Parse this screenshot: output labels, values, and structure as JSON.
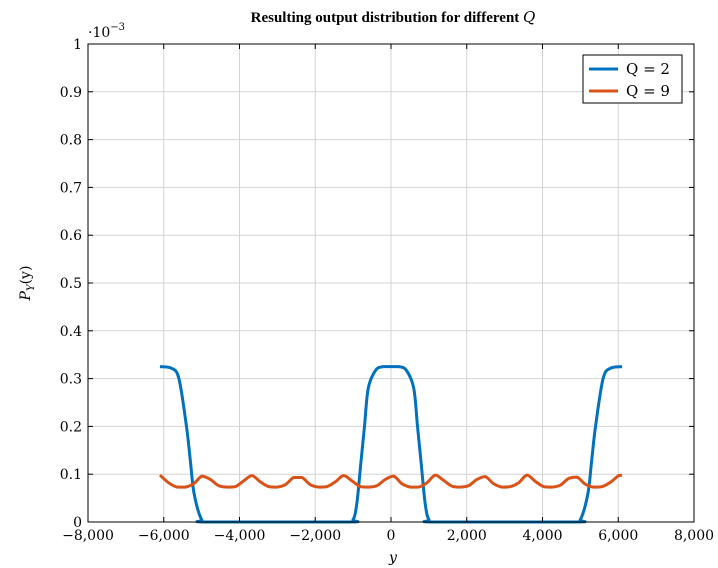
{
  "chart_data": {
    "type": "line",
    "title": "Resulting output distribution for different",
    "title_var": "Q",
    "xlabel": "y",
    "ylabel": "P_Y(y)",
    "ylabel_main": "P",
    "ylabel_sub": "Y",
    "ylabel_tail": "(y)",
    "y_exponent_label": "·10",
    "y_exponent_power": "−3",
    "xlim": [
      -8000,
      8000
    ],
    "ylim": [
      0,
      1
    ],
    "x_ticks": [
      -8000,
      -6000,
      -4000,
      -2000,
      0,
      2000,
      4000,
      6000,
      8000
    ],
    "x_tick_labels": [
      "−8,000",
      "−6,000",
      "−4,000",
      "−2,000",
      "0",
      "2,000",
      "4,000",
      "6,000",
      "8,000"
    ],
    "y_ticks": [
      0,
      0.1,
      0.2,
      0.3,
      0.4,
      0.5,
      0.6,
      0.7,
      0.8,
      0.9,
      1
    ],
    "y_tick_labels": [
      "0",
      "0.1",
      "0.2",
      "0.3",
      "0.4",
      "0.5",
      "0.6",
      "0.7",
      "0.8",
      "0.9",
      "1"
    ],
    "grid": true,
    "legend_position": "top-right",
    "series": [
      {
        "name": "Q = 2",
        "color": "#0072bd",
        "x": [
          -6100,
          -5800,
          -5600,
          -5400,
          -5300,
          -5200,
          -5000,
          -4800,
          -1200,
          -1000,
          -900,
          -800,
          -700,
          -600,
          -400,
          -200,
          0,
          200,
          400,
          600,
          700,
          800,
          900,
          1000,
          1200,
          4800,
          5000,
          5200,
          5300,
          5400,
          5600,
          5800,
          6100
        ],
        "values": [
          0.325,
          0.322,
          0.3,
          0.2,
          0.13,
          0.06,
          0.005,
          0.0,
          0.0,
          0.005,
          0.04,
          0.12,
          0.2,
          0.28,
          0.318,
          0.325,
          0.325,
          0.325,
          0.318,
          0.28,
          0.2,
          0.12,
          0.04,
          0.005,
          0.0,
          0.0,
          0.005,
          0.06,
          0.13,
          0.2,
          0.3,
          0.322,
          0.325
        ]
      },
      {
        "name": "Q = 9",
        "color": "#d95319",
        "x": [
          -6100,
          -5870,
          -5650,
          -5430,
          -5210,
          -4990,
          -4770,
          -4550,
          -4330,
          -4110,
          -3890,
          -3670,
          -3450,
          -3230,
          -3010,
          -2790,
          -2570,
          -2350,
          -2130,
          -1910,
          -1690,
          -1470,
          -1250,
          -1030,
          -810,
          -590,
          -370,
          -150,
          70,
          290,
          510,
          730,
          950,
          1170,
          1390,
          1610,
          1830,
          2050,
          2270,
          2490,
          2710,
          2930,
          3150,
          3370,
          3590,
          3810,
          4030,
          4250,
          4470,
          4690,
          4910,
          5130,
          5350,
          5570,
          5790,
          6010,
          6100
        ],
        "values": [
          0.098,
          0.082,
          0.073,
          0.073,
          0.08,
          0.096,
          0.089,
          0.076,
          0.073,
          0.074,
          0.086,
          0.097,
          0.084,
          0.074,
          0.073,
          0.078,
          0.093,
          0.093,
          0.078,
          0.073,
          0.074,
          0.084,
          0.097,
          0.086,
          0.074,
          0.073,
          0.076,
          0.089,
          0.096,
          0.08,
          0.073,
          0.073,
          0.082,
          0.098,
          0.087,
          0.075,
          0.073,
          0.076,
          0.089,
          0.095,
          0.08,
          0.073,
          0.074,
          0.082,
          0.098,
          0.085,
          0.074,
          0.073,
          0.077,
          0.091,
          0.094,
          0.079,
          0.073,
          0.074,
          0.083,
          0.097,
          0.098
        ]
      }
    ]
  }
}
